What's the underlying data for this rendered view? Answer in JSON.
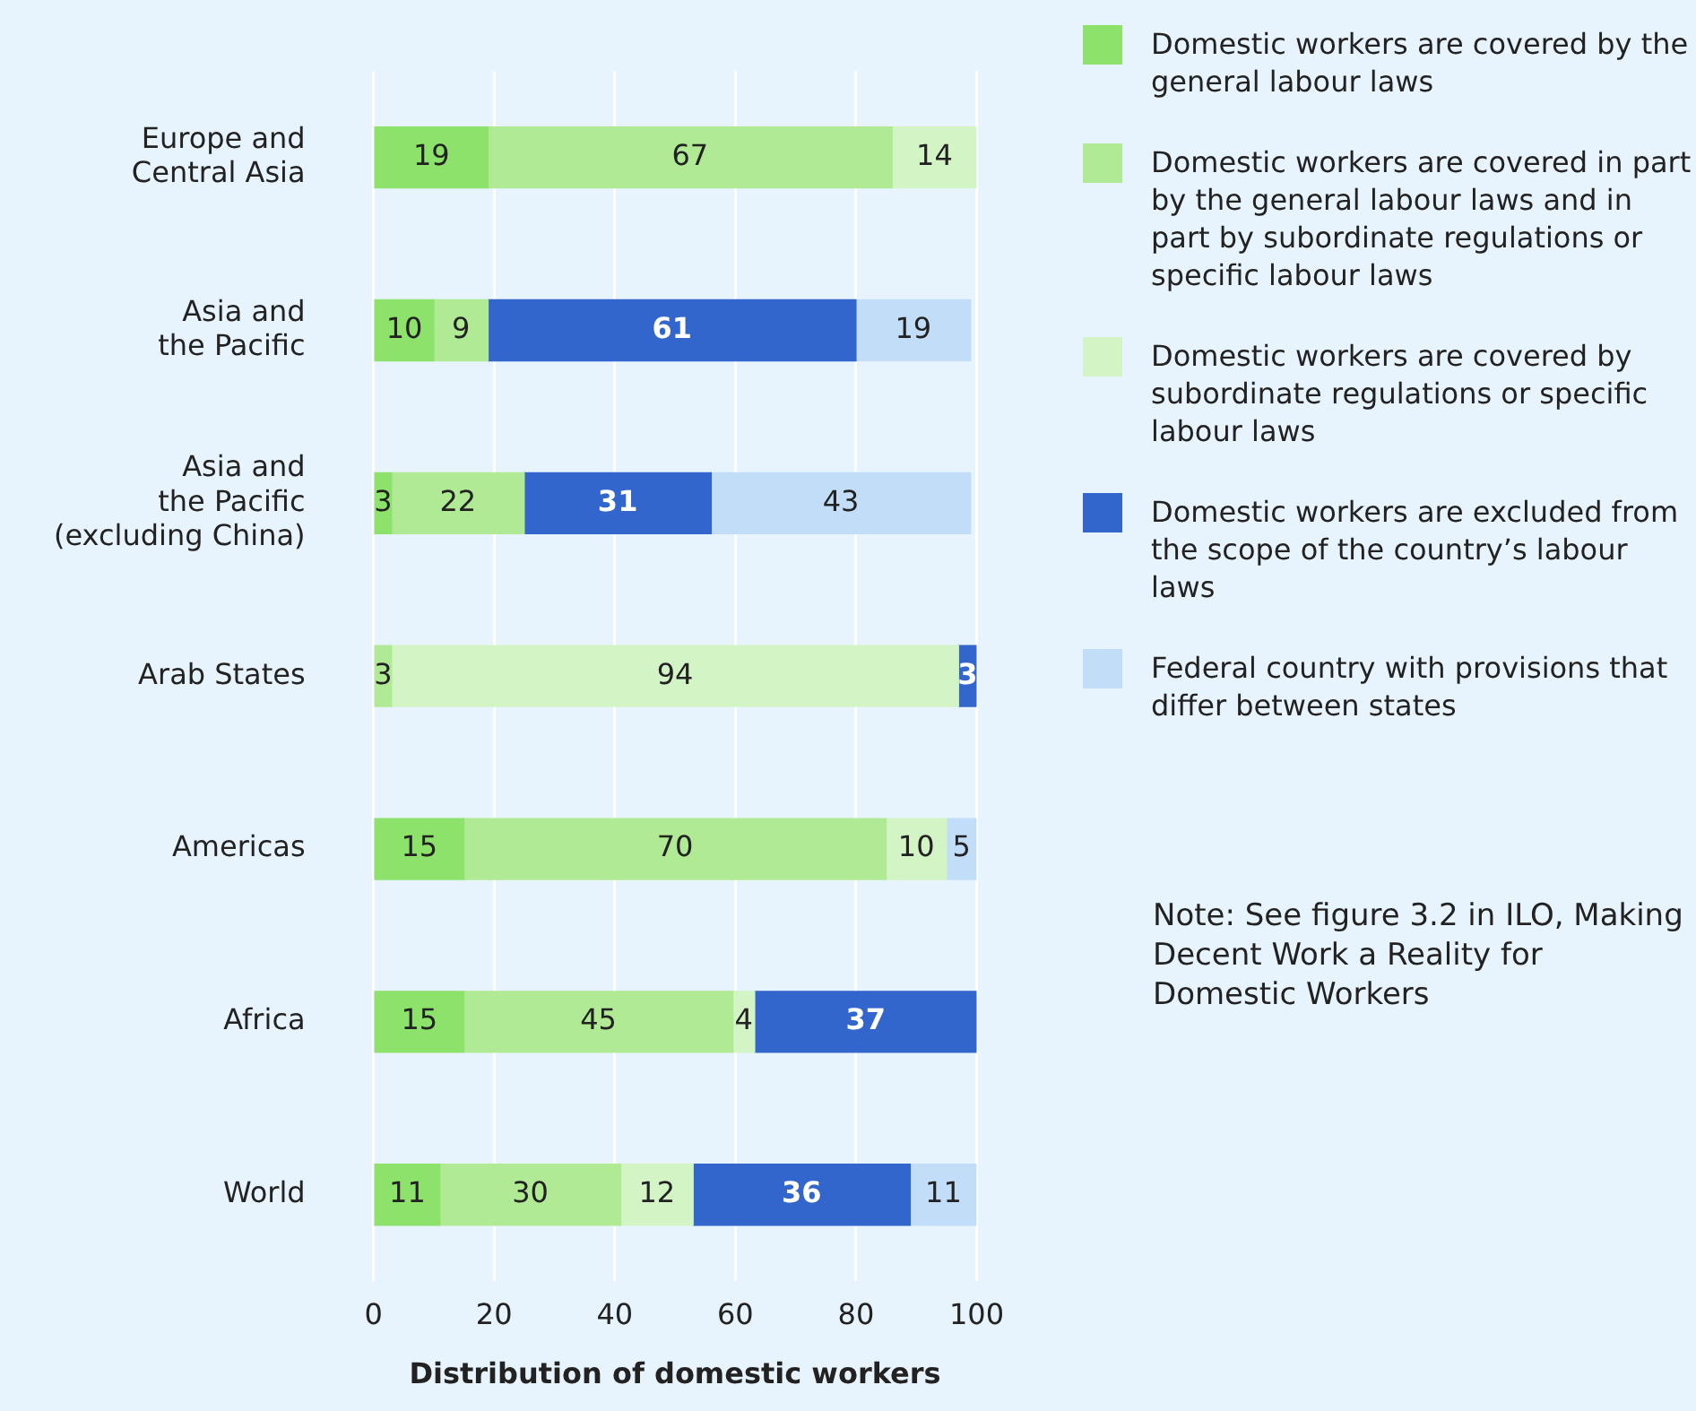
{
  "chart_data": {
    "type": "bar",
    "orientation": "horizontal",
    "stacked": true,
    "xlabel": "Distribution of domestic workers",
    "categories": [
      "Europe and\nCentral Asia",
      "Asia and\nthe Pacific",
      "Asia and\nthe Pacific\n(excluding China)",
      "Arab States",
      "Americas",
      "Africa",
      "World"
    ],
    "series": [
      {
        "name": "Domestic workers are covered by the general labour laws",
        "color": "#8de26b",
        "values": [
          19,
          10,
          3,
          null,
          15,
          15,
          11
        ],
        "value_labels": [
          "19",
          "10",
          "3",
          null,
          "15",
          "15",
          "11"
        ]
      },
      {
        "name": "Domestic workers are covered in part by the general labour laws and in part by subordinate regulations or specific labour laws",
        "color": "#b1ea95",
        "values": [
          67,
          9,
          22,
          3,
          70,
          44.6,
          30
        ],
        "value_labels": [
          "67",
          "9",
          "22",
          "3",
          "70",
          "45",
          "30"
        ]
      },
      {
        "name": "Domestic workers are covered by subordinate regulations or specific labour laws",
        "color": "#d3f5c6",
        "values": [
          14,
          null,
          null,
          94,
          10,
          3.6,
          12
        ],
        "value_labels": [
          "14",
          null,
          null,
          "94",
          "10",
          "4",
          "12"
        ]
      },
      {
        "name": "Domestic workers are excluded from the scope of the country’s labour laws",
        "color": "#3366cc",
        "values": [
          null,
          61,
          31,
          3,
          null,
          36.8,
          36
        ],
        "value_labels": [
          null,
          "61",
          "31",
          "3",
          null,
          "37",
          "36"
        ]
      },
      {
        "name": "Federal country with provisions that differ between states",
        "color": "#c2ddf8",
        "values": [
          null,
          19,
          43,
          null,
          5,
          null,
          11
        ],
        "value_labels": [
          null,
          "19",
          "43",
          null,
          "5",
          null,
          "11"
        ]
      }
    ],
    "xlim": [
      0,
      100
    ],
    "xticks": [
      0,
      20,
      40,
      60,
      80,
      100
    ],
    "grid": "x",
    "legend": "right",
    "annotations": [
      "Note: See figure 3.2 in ILO, Making Decent Work a Reality for Domestic Workers"
    ]
  }
}
